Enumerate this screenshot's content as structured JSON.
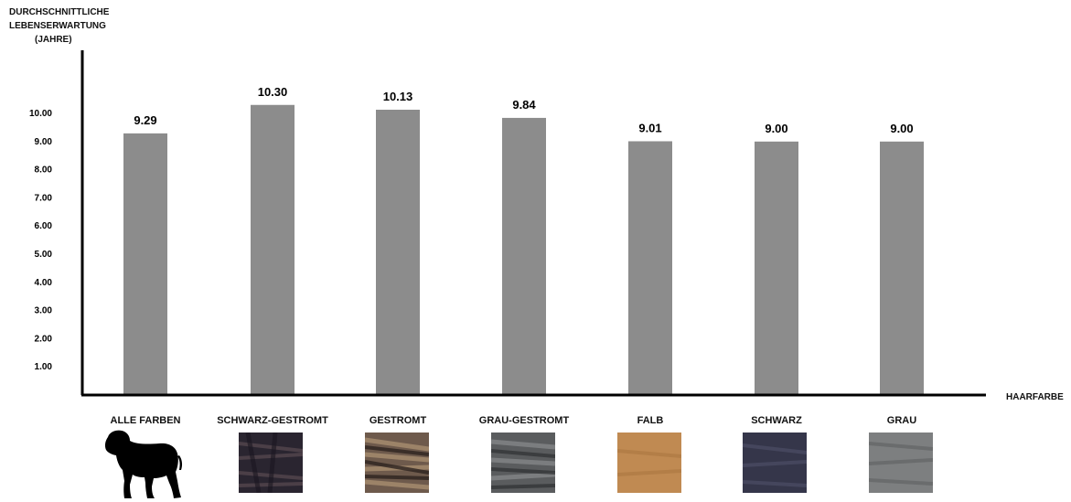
{
  "chart_data": {
    "type": "bar",
    "ylabel_lines": [
      "DURCHSCHNITTLICHE",
      "LEBENSERWARTUNG",
      "(JAHRE)"
    ],
    "xlabel": "HAARFARBE",
    "categories": [
      "ALLE FARBEN",
      "SCHWARZ-GESTROMT",
      "GESTROMT",
      "GRAU-GESTROMT",
      "FALB",
      "SCHWARZ",
      "GRAU"
    ],
    "values": [
      9.29,
      10.3,
      10.13,
      9.84,
      9.01,
      9.0,
      9.0
    ],
    "data_labels": [
      "9.29",
      "10.30",
      "10.13",
      "9.84",
      "9.01",
      "9.00",
      "9.00"
    ],
    "yticks": [
      "1.00",
      "2.00",
      "3.00",
      "4.00",
      "5.00",
      "6.00",
      "7.00",
      "8.00",
      "9.00",
      "10.00"
    ],
    "ylim": [
      0,
      11
    ],
    "grid": false,
    "legend": "none",
    "bar_color": "#8c8c8c",
    "swatch_icons": [
      "dog-silhouette-icon",
      "black-brindle-fur",
      "brindle-fur",
      "grey-brindle-fur",
      "fawn-fur",
      "black-fur",
      "grey-fur"
    ],
    "swatch_colors": [
      "#000000",
      "#2a2530",
      "#6e5a4c",
      "#5a5c5e",
      "#c08a52",
      "#35364a",
      "#7d7f80"
    ]
  }
}
